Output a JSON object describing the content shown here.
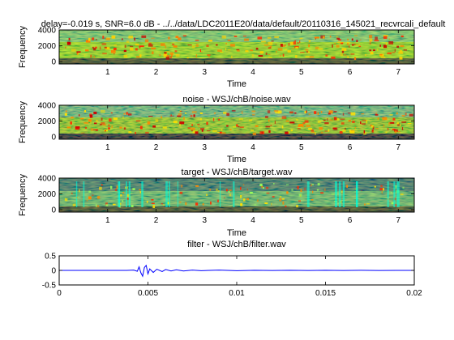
{
  "window_title": "",
  "chart_data": [
    {
      "type": "heatmap",
      "title": "delay=-0.019 s, SNR=6.0 dB - ../../data/LDC2011E20/data/default/20110316_145021_recvrcali_default",
      "xlabel": "Time",
      "ylabel": "Frequency",
      "xlim": [
        0,
        7.33
      ],
      "ylim": [
        -300,
        4000
      ],
      "xticks": [
        "1",
        "2",
        "3",
        "4",
        "5",
        "6",
        "7"
      ],
      "yticks": [
        "0",
        "2000",
        "4000"
      ],
      "colormap": "jet",
      "grid": false
    },
    {
      "type": "heatmap",
      "title": "noise - WSJ/chB/noise.wav",
      "xlabel": "Time",
      "ylabel": "Frequency",
      "xlim": [
        0,
        7.33
      ],
      "ylim": [
        -300,
        4000
      ],
      "xticks": [
        "1",
        "2",
        "3",
        "4",
        "5",
        "6",
        "7"
      ],
      "yticks": [
        "0",
        "2000",
        "4000"
      ],
      "colormap": "jet",
      "grid": false
    },
    {
      "type": "heatmap",
      "title": "target - WSJ/chB/target.wav",
      "xlabel": "Time",
      "ylabel": "Frequency",
      "xlim": [
        0,
        7.33
      ],
      "ylim": [
        -300,
        4000
      ],
      "xticks": [
        "1",
        "2",
        "3",
        "4",
        "5",
        "6",
        "7"
      ],
      "yticks": [
        "0",
        "2000",
        "4000"
      ],
      "colormap": "jet",
      "grid": false
    },
    {
      "type": "line",
      "title": "filter - WSJ/chB/filter.wav",
      "xlabel": "",
      "ylabel": "",
      "xlim": [
        0,
        0.02
      ],
      "ylim": [
        -0.5,
        0.5
      ],
      "xticks": [
        "0",
        "0.005",
        "0.01",
        "0.015",
        "0.02"
      ],
      "yticks": [
        "-0.5",
        "0",
        "0.5"
      ],
      "line_color": "#0000ff",
      "grid": false,
      "series": [
        {
          "x": [
            0,
            0.0038,
            0.0042,
            0.0044,
            0.0045,
            0.0046,
            0.0047,
            0.0048,
            0.0049,
            0.005,
            0.0051,
            0.0053,
            0.0055,
            0.0058,
            0.006,
            0.0063,
            0.0066,
            0.007,
            0.0075,
            0.008,
            0.009,
            0.01,
            0.011,
            0.012,
            0.013,
            0.014,
            0.015,
            0.016,
            0.017,
            0.018,
            0.019,
            0.02
          ],
          "y": [
            0,
            0,
            0.01,
            -0.03,
            0.12,
            -0.08,
            -0.2,
            0.1,
            0.17,
            -0.12,
            0.05,
            -0.07,
            0.04,
            -0.04,
            0.03,
            -0.02,
            0.02,
            -0.02,
            0.01,
            -0.01,
            0.01,
            -0.01,
            0.005,
            -0.005,
            0.005,
            -0.005,
            0.003,
            -0.003,
            0.002,
            -0.002,
            0.001,
            0
          ]
        }
      ]
    }
  ]
}
